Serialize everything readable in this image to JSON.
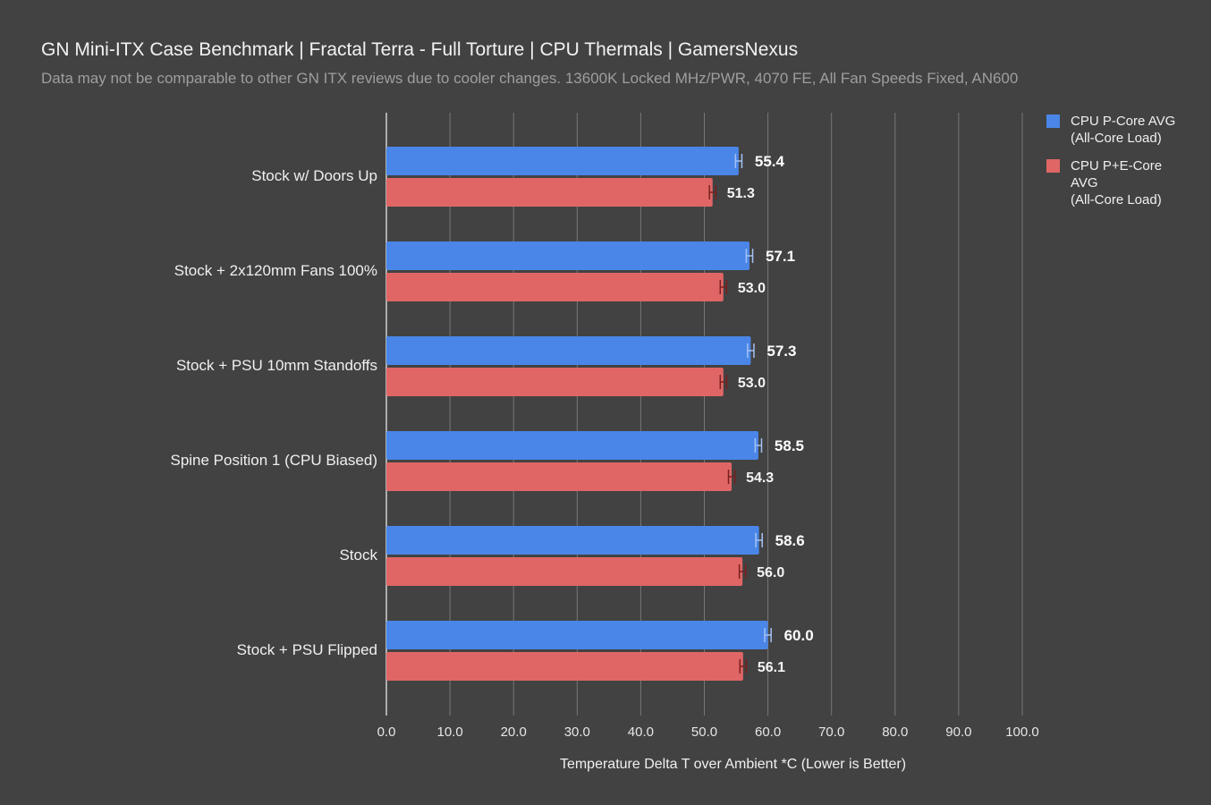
{
  "chart_data": {
    "type": "bar",
    "orientation": "horizontal",
    "title": "GN Mini-ITX Case Benchmark | Fractal Terra - Full Torture | CPU Thermals | GamersNexus",
    "subtitle": "Data may not be comparable to other GN ITX reviews due to cooler changes. 13600K Locked MHz/PWR, 4070 FE, All Fan Speeds Fixed, AN600",
    "xlabel": "Temperature Delta T over Ambient *C (Lower is Better)",
    "ylabel": "",
    "xlim": [
      0,
      100
    ],
    "ticks": [
      "0.0",
      "10.0",
      "20.0",
      "30.0",
      "40.0",
      "50.0",
      "60.0",
      "70.0",
      "80.0",
      "90.0",
      "100.0"
    ],
    "grid": true,
    "legend_position": "right",
    "categories": [
      "Stock w/ Doors Up",
      "Stock + 2x120mm Fans 100%",
      "Stock + PSU 10mm Standoffs",
      "Spine Position 1 (CPU Biased)",
      "Stock",
      "Stock + PSU Flipped"
    ],
    "series": [
      {
        "name": "CPU P-Core AVG\n(All-Core Load)",
        "color": "#4a86e8",
        "error_color": "#a4c2f4",
        "values": [
          55.4,
          57.1,
          57.3,
          58.5,
          58.6,
          60.0
        ],
        "labels": [
          "55.4",
          "57.1",
          "57.3",
          "58.5",
          "58.6",
          "60.0"
        ],
        "error": [
          0.5,
          0.5,
          0.5,
          0.5,
          0.5,
          0.5
        ]
      },
      {
        "name": "CPU P+E-Core\nAVG\n(All-Core Load)",
        "color": "#e06666",
        "error_color": "#7a1f1f",
        "values": [
          51.3,
          53.0,
          53.0,
          54.3,
          56.0,
          56.1
        ],
        "labels": [
          "51.3",
          "53.0",
          "53.0",
          "54.3",
          "56.0",
          "56.1"
        ],
        "error": [
          0.5,
          0.5,
          0.5,
          0.5,
          0.5,
          0.5
        ]
      }
    ]
  }
}
